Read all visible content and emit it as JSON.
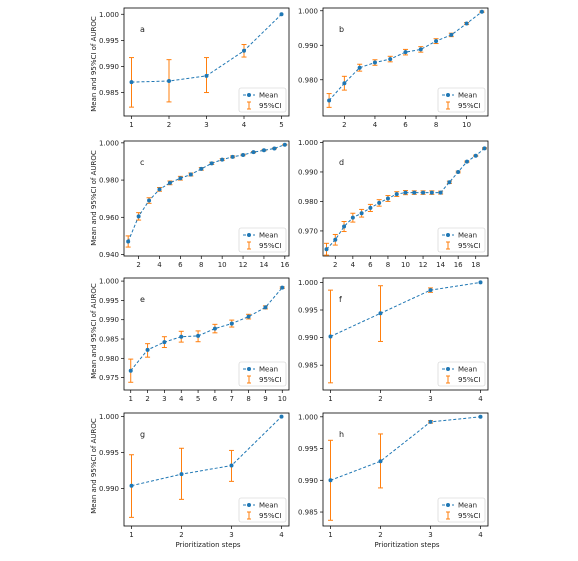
{
  "colors": {
    "mean": "#1f77b4",
    "ci": "#ff7f0e",
    "axis": "#000000"
  },
  "legend": {
    "mean_label": "Mean",
    "ci_label": "95%CI",
    "placement": "lower-right"
  },
  "ylabel_left": "Mean and 95%CI of AUROC",
  "xlabel_bottom": "Prioritization steps",
  "chart_data": [
    {
      "panel": "a",
      "type": "line",
      "x": [
        1,
        2,
        3,
        4,
        5
      ],
      "mean": [
        0.987,
        0.9872,
        0.9882,
        0.993,
        1.0
      ],
      "ci_low": [
        0.9822,
        0.9832,
        0.985,
        0.9918,
        1.0
      ],
      "ci_high": [
        0.9917,
        0.9913,
        0.9917,
        0.9942,
        1.0
      ],
      "xlim": [
        0.8,
        5.2
      ],
      "ylim": [
        0.9805,
        1.0012
      ],
      "xticks": [
        1,
        2,
        3,
        4,
        5
      ],
      "xtick_labels": [
        "1",
        "2",
        "3",
        "4",
        "5"
      ],
      "yticks": [
        0.985,
        0.99,
        0.995,
        1.0
      ],
      "ytick_labels": [
        "0.985",
        "0.990",
        "0.995",
        "1.000"
      ]
    },
    {
      "panel": "b",
      "type": "line",
      "x": [
        1,
        2,
        3,
        4,
        5,
        6,
        7,
        8,
        9,
        10,
        11
      ],
      "mean": [
        0.974,
        0.979,
        0.9835,
        0.985,
        0.986,
        0.988,
        0.9888,
        0.9912,
        0.993,
        0.9963,
        0.9997
      ],
      "ci_low": [
        0.972,
        0.977,
        0.9825,
        0.9842,
        0.9852,
        0.9872,
        0.988,
        0.9905,
        0.9925,
        0.996,
        0.9995
      ],
      "ci_high": [
        0.976,
        0.981,
        0.9845,
        0.9858,
        0.9868,
        0.9888,
        0.9896,
        0.9919,
        0.9935,
        0.9966,
        0.9999
      ],
      "xlim": [
        0.6,
        11.4
      ],
      "ylim": [
        0.9695,
        1.0008
      ],
      "xticks": [
        2,
        4,
        6,
        8,
        10
      ],
      "xtick_labels": [
        "2",
        "4",
        "6",
        "8",
        "10"
      ],
      "yticks": [
        0.98,
        0.99,
        1.0
      ],
      "ytick_labels": [
        "0.980",
        "0.990",
        "1.000"
      ]
    },
    {
      "panel": "c",
      "type": "line",
      "x": [
        1,
        2,
        3,
        4,
        5,
        6,
        7,
        8,
        9,
        10,
        11,
        12,
        13,
        14,
        15,
        16
      ],
      "mean": [
        0.947,
        0.9605,
        0.969,
        0.975,
        0.9785,
        0.981,
        0.983,
        0.986,
        0.989,
        0.991,
        0.9925,
        0.9935,
        0.995,
        0.996,
        0.997,
        0.999
      ],
      "ci_low": [
        0.944,
        0.9585,
        0.9675,
        0.974,
        0.9775,
        0.98,
        0.9822,
        0.9853,
        0.9884,
        0.9905,
        0.992,
        0.9931,
        0.9947,
        0.9957,
        0.9968,
        0.9988
      ],
      "ci_high": [
        0.95,
        0.9625,
        0.9705,
        0.976,
        0.9795,
        0.982,
        0.9838,
        0.9867,
        0.9896,
        0.9915,
        0.993,
        0.9939,
        0.9953,
        0.9963,
        0.9972,
        0.9992
      ],
      "xlim": [
        0.6,
        16.4
      ],
      "ylim": [
        0.9392,
        1.001
      ],
      "xticks": [
        2,
        4,
        6,
        8,
        10,
        12,
        14,
        16
      ],
      "xtick_labels": [
        "2",
        "4",
        "6",
        "8",
        "10",
        "12",
        "14",
        "16"
      ],
      "yticks": [
        0.94,
        0.96,
        0.98,
        1.0
      ],
      "ytick_labels": [
        "0.940",
        "0.960",
        "0.980",
        "1.000"
      ]
    },
    {
      "panel": "d",
      "type": "line",
      "x": [
        1,
        2,
        3,
        4,
        5,
        6,
        7,
        8,
        9,
        10,
        11,
        12,
        13,
        14,
        15,
        16,
        17,
        18,
        19
      ],
      "mean": [
        0.9638,
        0.967,
        0.9715,
        0.9745,
        0.976,
        0.9778,
        0.9795,
        0.981,
        0.9825,
        0.983,
        0.983,
        0.983,
        0.983,
        0.983,
        0.9865,
        0.99,
        0.9935,
        0.9955,
        0.998
      ],
      "ci_low": [
        0.9618,
        0.9652,
        0.9698,
        0.973,
        0.9747,
        0.9766,
        0.9784,
        0.98,
        0.9817,
        0.9823,
        0.9824,
        0.9824,
        0.9824,
        0.9825,
        0.9861,
        0.9897,
        0.9933,
        0.9953,
        0.9978
      ],
      "ci_high": [
        0.9658,
        0.9688,
        0.9732,
        0.976,
        0.9773,
        0.979,
        0.9806,
        0.982,
        0.9833,
        0.9837,
        0.9836,
        0.9836,
        0.9836,
        0.9835,
        0.9869,
        0.9903,
        0.9937,
        0.9957,
        0.9982
      ],
      "xlim": [
        0.6,
        19.4
      ],
      "ylim": [
        0.9615,
        1.0005
      ],
      "xticks": [
        2,
        4,
        6,
        8,
        10,
        12,
        14,
        16,
        18
      ],
      "xtick_labels": [
        "2",
        "4",
        "6",
        "8",
        "10",
        "12",
        "14",
        "16",
        "18"
      ],
      "yticks": [
        0.97,
        0.98,
        0.99,
        1.0
      ],
      "ytick_labels": [
        "0.970",
        "0.980",
        "0.990",
        "1.000"
      ]
    },
    {
      "panel": "e",
      "type": "line",
      "x": [
        1,
        2,
        3,
        4,
        5,
        6,
        7,
        8,
        9,
        10
      ],
      "mean": [
        0.9768,
        0.9822,
        0.9842,
        0.9856,
        0.9858,
        0.9877,
        0.989,
        0.9908,
        0.9932,
        0.9983
      ],
      "ci_low": [
        0.9738,
        0.9803,
        0.9828,
        0.9842,
        0.9843,
        0.9866,
        0.9881,
        0.9902,
        0.9928,
        0.9981
      ],
      "ci_high": [
        0.9798,
        0.9838,
        0.9856,
        0.987,
        0.9871,
        0.9888,
        0.9899,
        0.9914,
        0.9936,
        0.9985
      ],
      "xlim": [
        0.6,
        10.4
      ],
      "ylim": [
        0.9718,
        1.0008
      ],
      "xticks": [
        1,
        2,
        3,
        4,
        5,
        6,
        7,
        8,
        9,
        10
      ],
      "xtick_labels": [
        "1",
        "2",
        "3",
        "4",
        "5",
        "6",
        "7",
        "8",
        "9",
        "10"
      ],
      "yticks": [
        0.975,
        0.98,
        0.985,
        0.99,
        0.995,
        1.0
      ],
      "ytick_labels": [
        "0.975",
        "0.980",
        "0.985",
        "0.990",
        "0.995",
        "1.000"
      ]
    },
    {
      "panel": "f",
      "type": "line",
      "x": [
        1,
        2,
        3,
        4
      ],
      "mean": [
        0.9902,
        0.9944,
        0.9986,
        1.0
      ],
      "ci_low": [
        0.9818,
        0.9893,
        0.9982,
        1.0
      ],
      "ci_high": [
        0.9986,
        0.9994,
        0.999,
        1.0
      ],
      "xlim": [
        0.85,
        4.15
      ],
      "ylim": [
        0.9805,
        1.0008
      ],
      "xticks": [
        1,
        2,
        3,
        4
      ],
      "xtick_labels": [
        "1",
        "2",
        "3",
        "4"
      ],
      "yticks": [
        0.985,
        0.99,
        0.995,
        1.0
      ],
      "ytick_labels": [
        "0.985",
        "0.990",
        "0.995",
        "1.000"
      ]
    },
    {
      "panel": "g",
      "type": "line",
      "x": [
        1,
        2,
        3,
        4
      ],
      "mean": [
        0.9904,
        0.992,
        0.9932,
        1.0
      ],
      "ci_low": [
        0.986,
        0.9885,
        0.991,
        1.0
      ],
      "ci_high": [
        0.9947,
        0.9956,
        0.9953,
        1.0
      ],
      "xlim": [
        0.85,
        4.15
      ],
      "ylim": [
        0.9848,
        1.0005
      ],
      "xticks": [
        1,
        2,
        3,
        4
      ],
      "xtick_labels": [
        "1",
        "2",
        "3",
        "4"
      ],
      "yticks": [
        0.99,
        0.995,
        1.0
      ],
      "ytick_labels": [
        "0.990",
        "0.995",
        "1.000"
      ]
    },
    {
      "panel": "h",
      "type": "line",
      "x": [
        1,
        2,
        3,
        4
      ],
      "mean": [
        0.99,
        0.993,
        0.9992,
        1.0
      ],
      "ci_low": [
        0.9837,
        0.9888,
        0.999,
        1.0
      ],
      "ci_high": [
        0.9963,
        0.9973,
        0.9994,
        1.0
      ],
      "xlim": [
        0.85,
        4.15
      ],
      "ylim": [
        0.9828,
        1.0006
      ],
      "xticks": [
        1,
        2,
        3,
        4
      ],
      "xtick_labels": [
        "1",
        "2",
        "3",
        "4"
      ],
      "yticks": [
        0.985,
        0.99,
        0.995,
        1.0
      ],
      "ytick_labels": [
        "0.985",
        "0.990",
        "0.995",
        "1.000"
      ]
    }
  ]
}
